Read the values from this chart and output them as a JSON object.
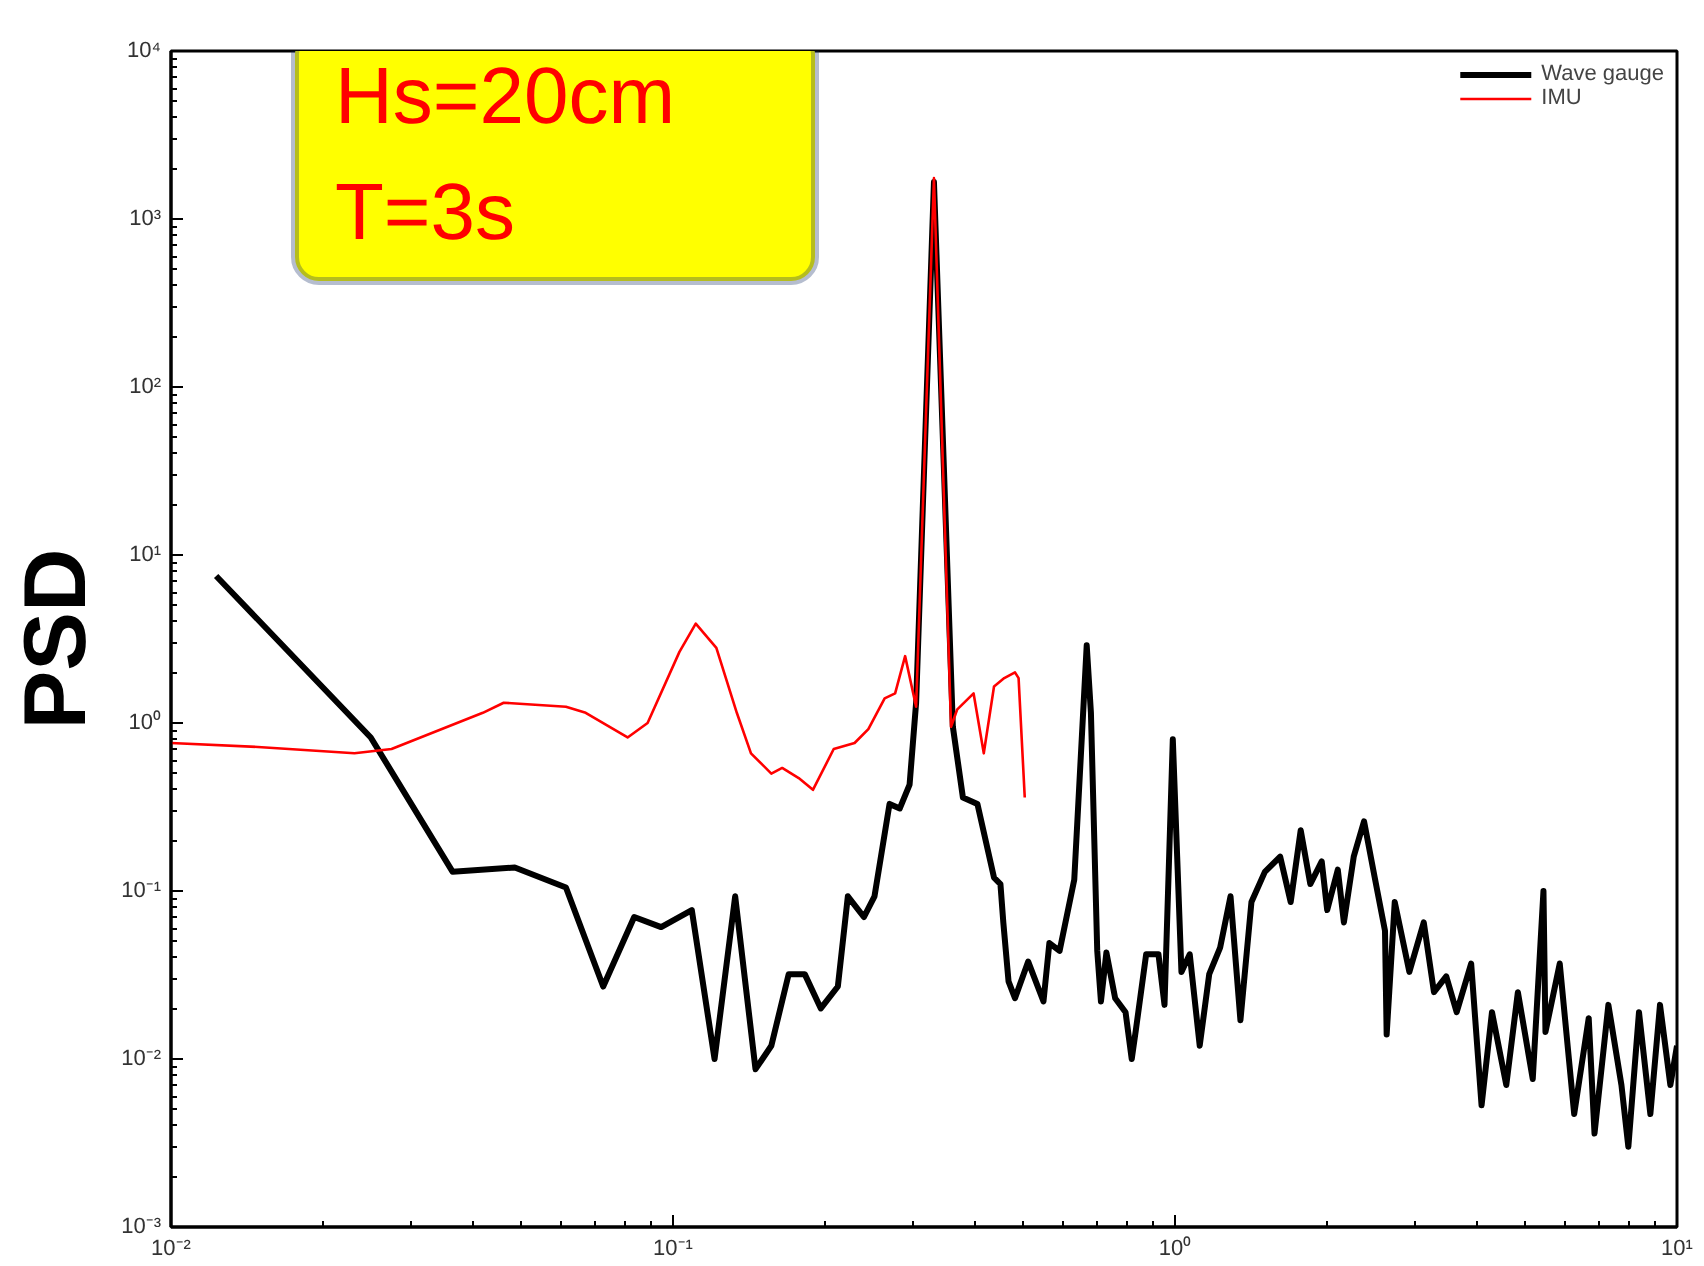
{
  "chart_data": {
    "type": "line",
    "ylabel": "PSD",
    "annotations": [
      "Hs=20cm",
      "T=3s"
    ],
    "log": "xy",
    "grid": false,
    "legend": "top right",
    "line_style": "solid",
    "marker": "none",
    "xlim": [
      0.01,
      10
    ],
    "ylim": [
      0.001,
      10000
    ],
    "xticks": [
      {
        "value": 0.01,
        "label": "10⁻²"
      },
      {
        "value": 0.1,
        "label": "10⁻¹"
      },
      {
        "value": 1,
        "label": "10⁰"
      },
      {
        "value": 10,
        "label": "10¹"
      }
    ],
    "yticks": [
      {
        "value": 0.001,
        "label": "10⁻³"
      },
      {
        "value": 0.01,
        "label": "10⁻²"
      },
      {
        "value": 0.1,
        "label": "10⁻¹"
      },
      {
        "value": 1,
        "label": "10⁰"
      },
      {
        "value": 10,
        "label": "10¹"
      },
      {
        "value": 100,
        "label": "10²"
      },
      {
        "value": 1000,
        "label": "10³"
      },
      {
        "value": 10000,
        "label": "10⁴"
      }
    ],
    "series": [
      {
        "name": "Wave gauge",
        "color": "#000000",
        "x": [
          0.0123,
          0.025,
          0.0364,
          0.0484,
          0.0612,
          0.0726,
          0.0837,
          0.0947,
          0.109,
          0.121,
          0.133,
          0.146,
          0.157,
          0.17,
          0.183,
          0.197,
          0.213,
          0.223,
          0.24,
          0.252,
          0.27,
          0.283,
          0.296,
          0.305,
          0.331,
          0.361,
          0.378,
          0.404,
          0.436,
          0.449,
          0.455,
          0.466,
          0.48,
          0.51,
          0.547,
          0.562,
          0.589,
          0.63,
          0.667,
          0.68,
          0.7,
          0.712,
          0.73,
          0.76,
          0.797,
          0.82,
          0.836,
          0.876,
          0.927,
          0.953,
          0.99,
          1.01,
          1.03,
          1.07,
          1.12,
          1.17,
          1.23,
          1.29,
          1.35,
          1.42,
          1.51,
          1.62,
          1.7,
          1.78,
          1.86,
          1.96,
          2.01,
          2.11,
          2.17,
          2.27,
          2.38,
          2.5,
          2.62,
          2.64,
          2.74,
          2.93,
          3.13,
          3.28,
          3.47,
          3.64,
          3.89,
          4.08,
          4.28,
          4.57,
          4.82,
          5.16,
          5.42,
          5.47,
          5.84,
          6.24,
          6.67,
          6.85,
          7.3,
          7.75,
          8.0,
          8.4,
          8.85,
          9.25,
          9.7,
          10
        ],
        "values": [
          7.5,
          0.82,
          0.13,
          0.138,
          0.105,
          0.027,
          0.07,
          0.061,
          0.077,
          0.01,
          0.093,
          0.0087,
          0.012,
          0.032,
          0.032,
          0.02,
          0.027,
          0.093,
          0.07,
          0.093,
          0.33,
          0.31,
          0.43,
          1.32,
          1660,
          0.95,
          0.36,
          0.33,
          0.12,
          0.11,
          0.065,
          0.029,
          0.023,
          0.038,
          0.022,
          0.049,
          0.044,
          0.117,
          2.9,
          1.15,
          0.044,
          0.022,
          0.043,
          0.023,
          0.019,
          0.01,
          0.015,
          0.042,
          0.042,
          0.021,
          0.8,
          0.16,
          0.033,
          0.042,
          0.012,
          0.032,
          0.046,
          0.093,
          0.017,
          0.086,
          0.13,
          0.16,
          0.086,
          0.23,
          0.11,
          0.15,
          0.077,
          0.134,
          0.065,
          0.16,
          0.26,
          0.12,
          0.058,
          0.014,
          0.086,
          0.033,
          0.065,
          0.025,
          0.031,
          0.019,
          0.037,
          0.0053,
          0.019,
          0.007,
          0.025,
          0.0076,
          0.1,
          0.0145,
          0.037,
          0.0047,
          0.0175,
          0.0036,
          0.021,
          0.007,
          0.003,
          0.019,
          0.0047,
          0.021,
          0.007,
          0.012
        ]
      },
      {
        "name": "IMU",
        "color": "#ff0000",
        "x": [
          0.01,
          0.0149,
          0.0232,
          0.0275,
          0.0418,
          0.046,
          0.0612,
          0.067,
          0.0812,
          0.089,
          0.103,
          0.111,
          0.122,
          0.134,
          0.143,
          0.157,
          0.165,
          0.178,
          0.19,
          0.209,
          0.23,
          0.245,
          0.264,
          0.277,
          0.29,
          0.305,
          0.331,
          0.358,
          0.368,
          0.397,
          0.416,
          0.436,
          0.457,
          0.48,
          0.488,
          0.502
        ],
        "values": [
          0.76,
          0.72,
          0.66,
          0.7,
          1.15,
          1.32,
          1.25,
          1.15,
          0.82,
          1.0,
          2.65,
          3.9,
          2.8,
          1.15,
          0.66,
          0.5,
          0.54,
          0.47,
          0.4,
          0.7,
          0.76,
          0.92,
          1.4,
          1.5,
          2.5,
          1.25,
          1750,
          0.95,
          1.2,
          1.5,
          0.66,
          1.65,
          1.85,
          2.0,
          1.85,
          0.36
        ]
      }
    ]
  }
}
